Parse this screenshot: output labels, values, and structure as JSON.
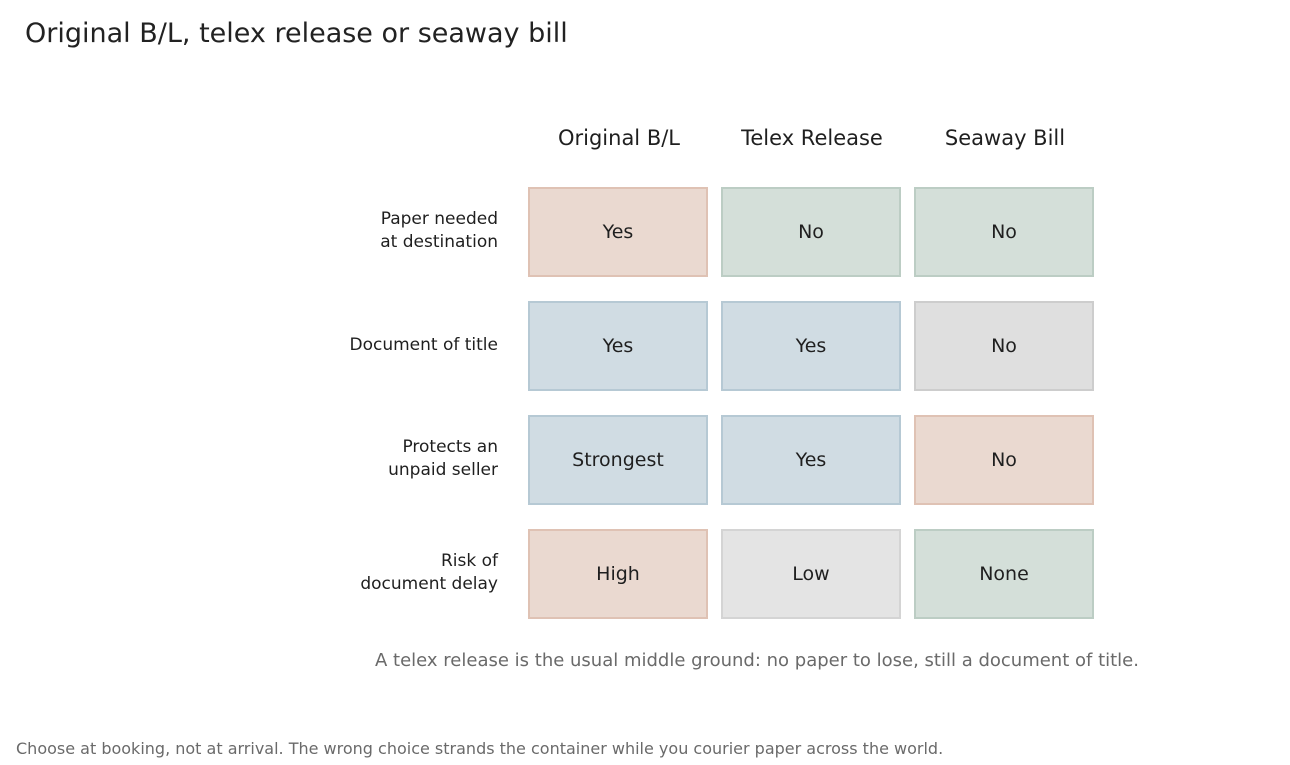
{
  "title": "Original B/L, telex release or seaway bill",
  "columns": [
    "Original B/L",
    "Telex Release",
    "Seaway Bill"
  ],
  "rows": [
    {
      "label_lines": [
        "Paper needed",
        "at destination"
      ],
      "cells": [
        {
          "text": "Yes",
          "tone": "risk"
        },
        {
          "text": "No",
          "tone": "good"
        },
        {
          "text": "No",
          "tone": "good"
        }
      ]
    },
    {
      "label_lines": [
        "Document of title"
      ],
      "cells": [
        {
          "text": "Yes",
          "tone": "info"
        },
        {
          "text": "Yes",
          "tone": "info"
        },
        {
          "text": "No",
          "tone": "neutral"
        }
      ]
    },
    {
      "label_lines": [
        "Protects an",
        "unpaid seller"
      ],
      "cells": [
        {
          "text": "Strongest",
          "tone": "info"
        },
        {
          "text": "Yes",
          "tone": "info"
        },
        {
          "text": "No",
          "tone": "risk"
        }
      ]
    },
    {
      "label_lines": [
        "Risk of",
        "document delay"
      ],
      "cells": [
        {
          "text": "High",
          "tone": "risk"
        },
        {
          "text": "Low",
          "tone": "light"
        },
        {
          "text": "None",
          "tone": "good"
        }
      ]
    }
  ],
  "tones": {
    "risk": {
      "fill": "#ead9d0",
      "border": "#dfc2b4"
    },
    "good": {
      "fill": "#d4dfd9",
      "border": "#bccdc4"
    },
    "info": {
      "fill": "#d0dce3",
      "border": "#b6c9d4"
    },
    "neutral": {
      "fill": "#dfdfdf",
      "border": "#cdcdcd"
    },
    "light": {
      "fill": "#e4e4e4",
      "border": "#d4d4d4"
    }
  },
  "note": "A telex release is the usual middle ground: no paper to lose, still a document of title.",
  "footer": "Choose at booking, not at arrival. The wrong choice strands the container while you courier paper across the world."
}
